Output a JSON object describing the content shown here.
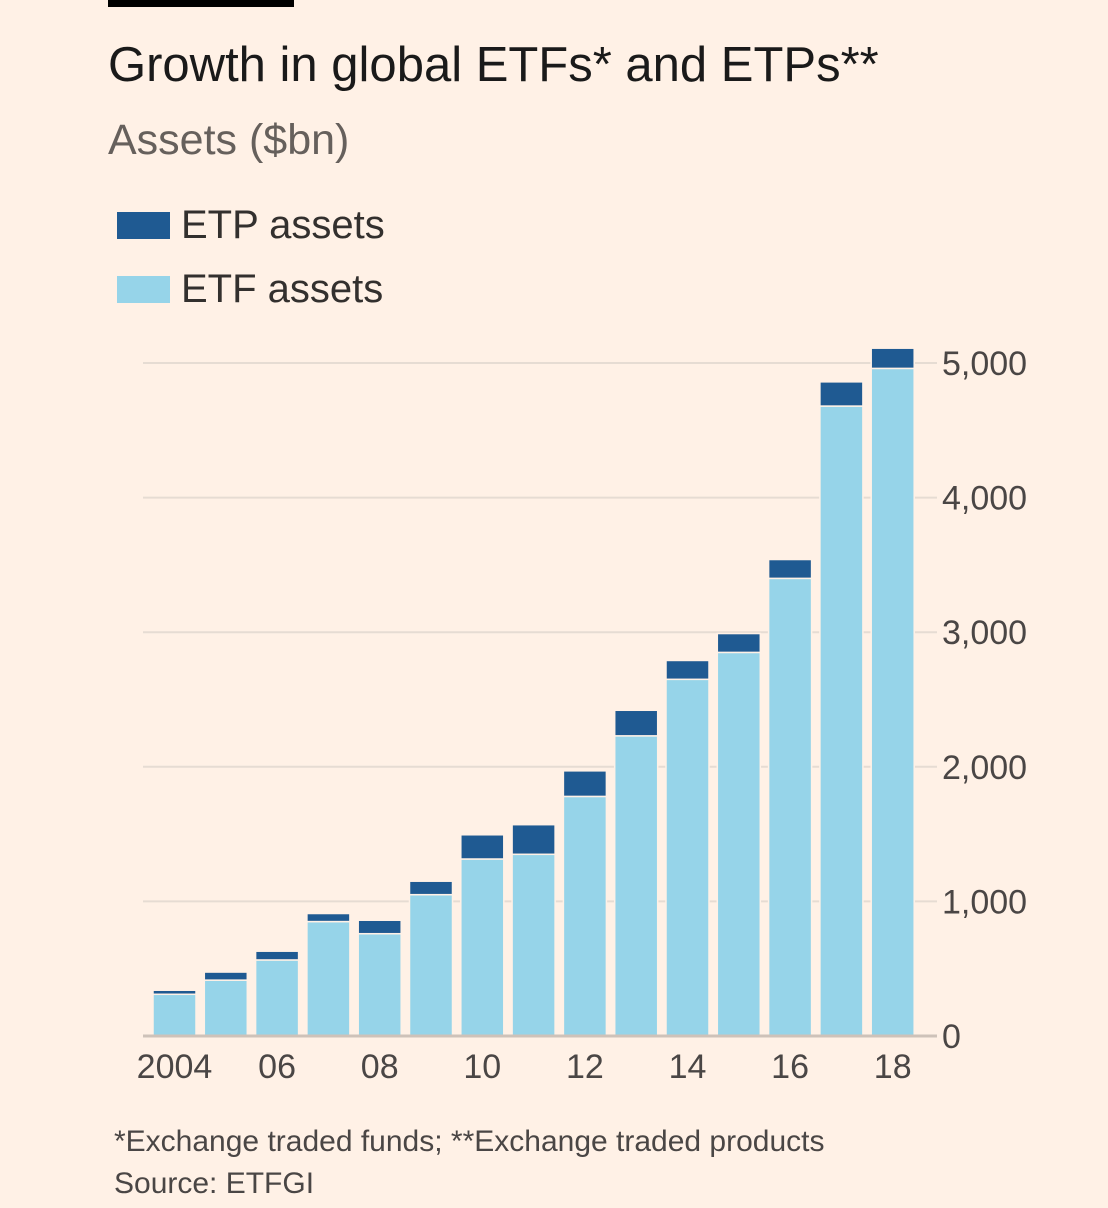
{
  "colors": {
    "background": "#FFF1E6",
    "etp": "#1F5A92",
    "etf": "#96D4E9",
    "gridline": "#E6DCD3",
    "axis": "#CEC2B9",
    "text": "#4a4645"
  },
  "chart_data": {
    "type": "bar",
    "stacked": true,
    "title": "Growth in global ETFs* and ETPs**",
    "subtitle": "Assets ($bn)",
    "categories": [
      "2004",
      "2005",
      "2006",
      "2007",
      "2008",
      "2009",
      "2010",
      "2011",
      "2012",
      "2013",
      "2014",
      "2015",
      "2016",
      "2017",
      "2018"
    ],
    "x_tick_labels": [
      {
        "category": "2004",
        "label": "2004"
      },
      {
        "category": "2006",
        "label": "06"
      },
      {
        "category": "2008",
        "label": "08"
      },
      {
        "category": "2010",
        "label": "10"
      },
      {
        "category": "2012",
        "label": "12"
      },
      {
        "category": "2014",
        "label": "14"
      },
      {
        "category": "2016",
        "label": "16"
      },
      {
        "category": "2018",
        "label": "18"
      }
    ],
    "series": [
      {
        "name": "ETF assets",
        "color": "#96D4E9",
        "values": [
          310,
          415,
          565,
          850,
          760,
          1050,
          1315,
          1350,
          1780,
          2230,
          2650,
          2850,
          3400,
          4680,
          4960
        ]
      },
      {
        "name": "ETP assets",
        "color": "#1F5A92",
        "values": [
          30,
          60,
          65,
          60,
          100,
          100,
          180,
          220,
          190,
          190,
          140,
          140,
          140,
          180,
          150
        ]
      }
    ],
    "legend": [
      {
        "name": "ETP assets",
        "color": "#1F5A92"
      },
      {
        "name": "ETF assets",
        "color": "#96D4E9"
      }
    ],
    "legend_position": "top-left",
    "y_ticks": [
      0,
      1000,
      2000,
      3000,
      4000,
      5000
    ],
    "y_tick_labels": [
      "0",
      "1,000",
      "2,000",
      "3,000",
      "4,000",
      "5,000"
    ],
    "y_axis_side": "right",
    "ylim": [
      0,
      5000
    ],
    "grid": true,
    "xlabel": "",
    "ylabel": ""
  },
  "footnote": "*Exchange traded funds; **Exchange traded products",
  "source": "Source: ETFGI"
}
